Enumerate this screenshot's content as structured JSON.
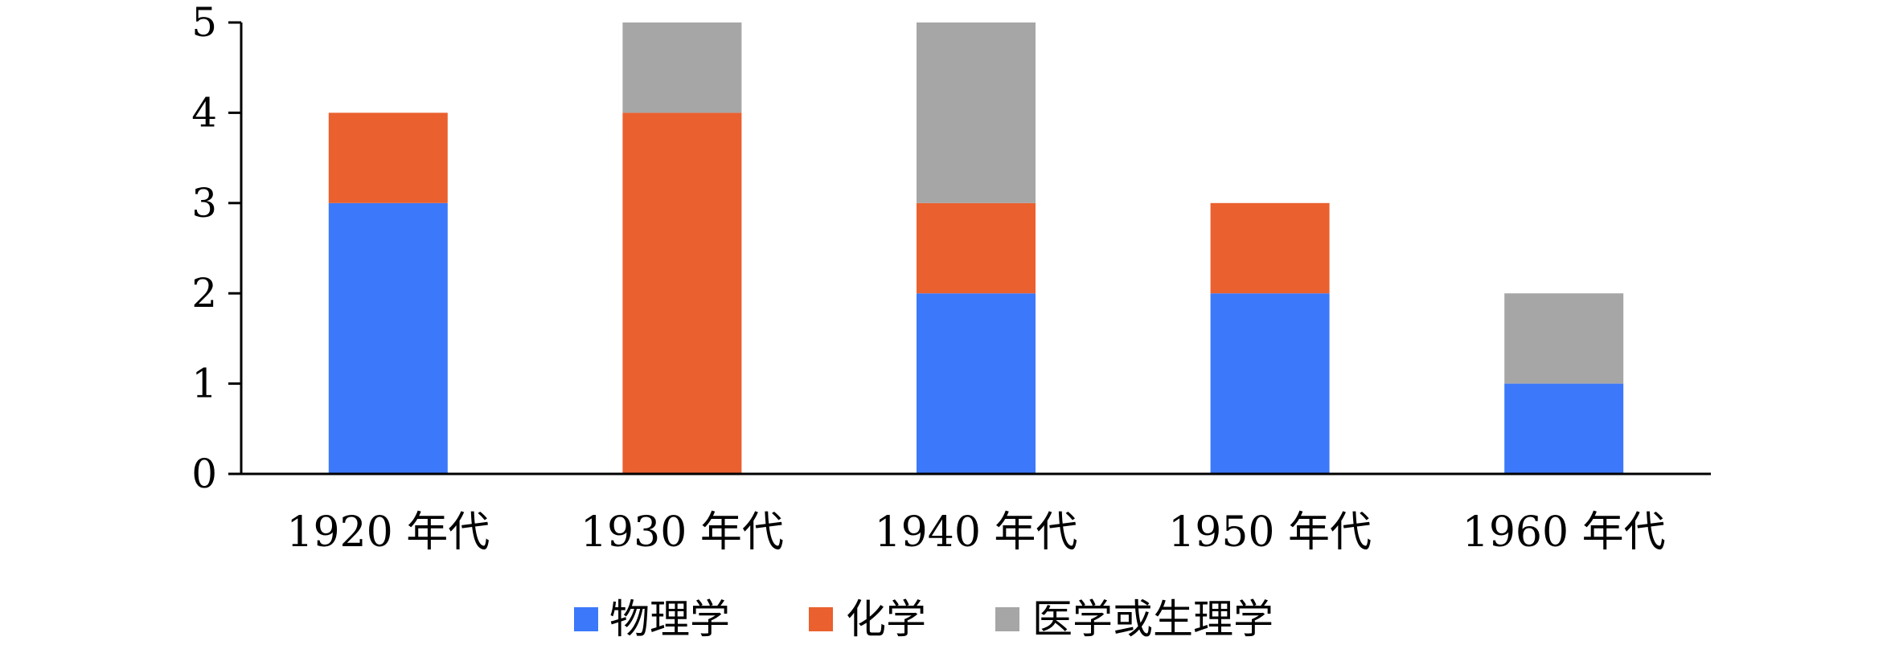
{
  "chart_data": {
    "type": "bar",
    "stacked": true,
    "categories": [
      "1920 年代",
      "1930 年代",
      "1940 年代",
      "1950 年代",
      "1960 年代"
    ],
    "series": [
      {
        "name": "物理学",
        "values": [
          3,
          0,
          2,
          2,
          1
        ],
        "color": "#3c78fa"
      },
      {
        "name": "化学",
        "values": [
          1,
          4,
          1,
          1,
          0
        ],
        "color": "#ea602f"
      },
      {
        "name": "医学或生理学",
        "values": [
          0,
          1,
          2,
          0,
          1
        ],
        "color": "#a6a6a6"
      }
    ],
    "title": "",
    "xlabel": "",
    "ylabel": "",
    "ylim": [
      0,
      5
    ],
    "yticks": [
      "0",
      "1",
      "2",
      "3",
      "4",
      "5"
    ],
    "grid": false,
    "legend_position": "bottom"
  }
}
